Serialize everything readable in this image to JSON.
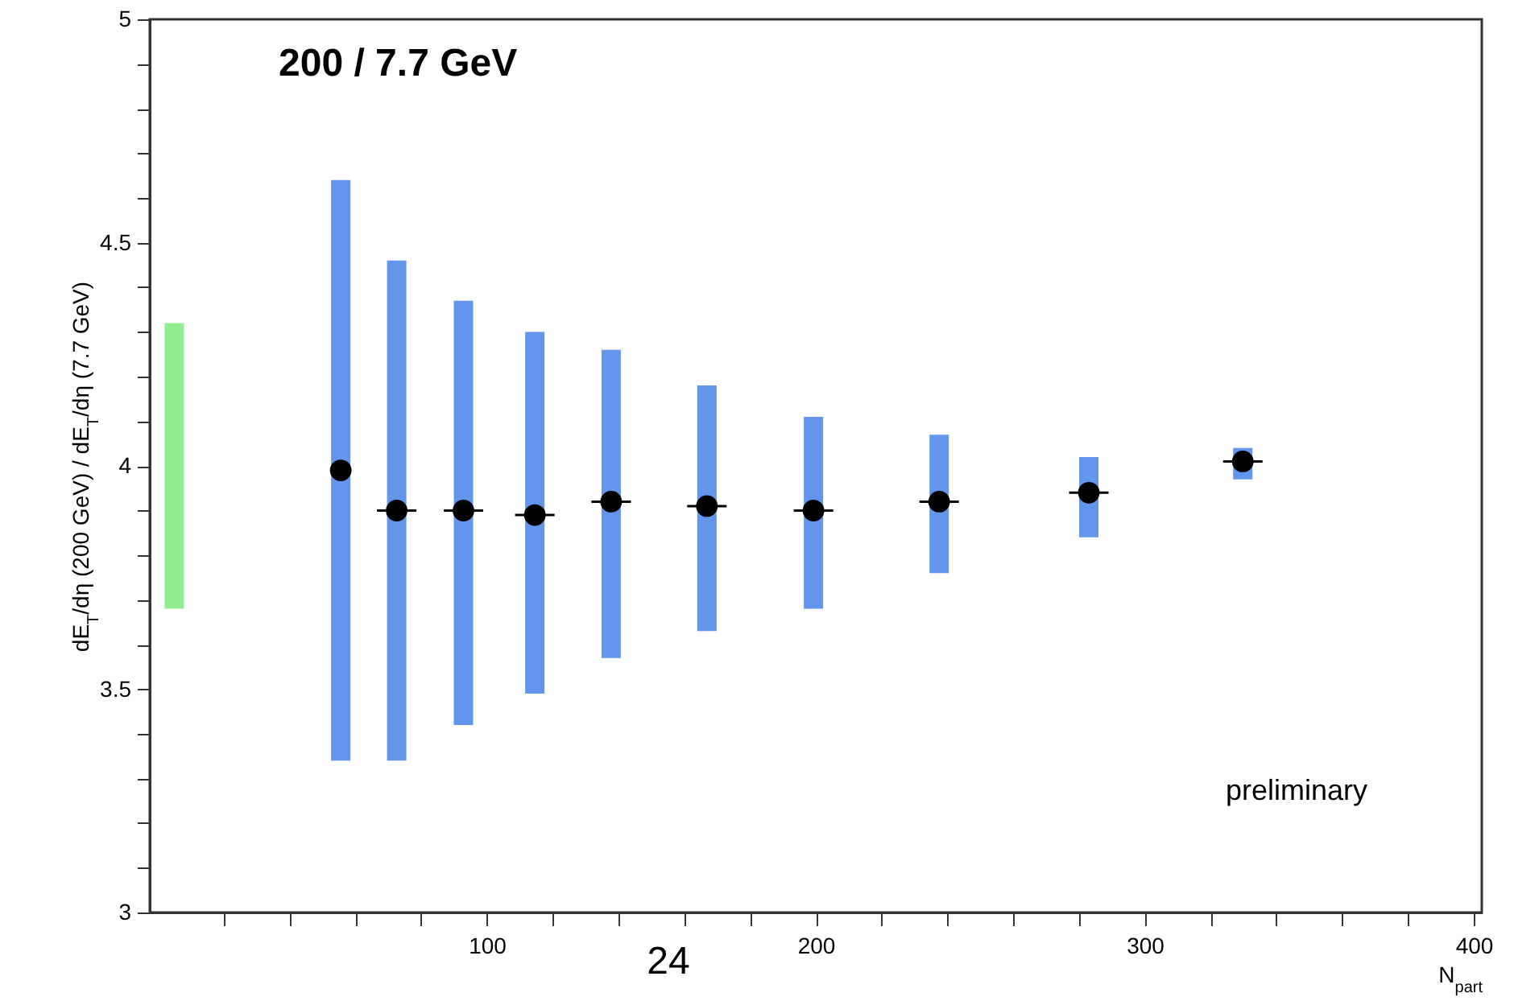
{
  "chart_data": {
    "type": "scatter",
    "title": "200 / 7.7 GeV",
    "xlabel": "N$_{part}$",
    "ylabel": "dE$_{T}$/dη (200 GeV) / dE$_{T}$/dη (7.7 GeV)",
    "annotations": [
      "preliminary",
      "24"
    ],
    "xlim": [
      0,
      400
    ],
    "ylim": [
      3,
      5
    ],
    "xticks": [
      {
        "value": 20,
        "label": null
      },
      {
        "value": 40,
        "label": null
      },
      {
        "value": 60,
        "label": null
      },
      {
        "value": 80,
        "label": null
      },
      100,
      {
        "value": 120,
        "label": null
      },
      {
        "value": 140,
        "label": null
      },
      {
        "value": 160,
        "label": null
      },
      {
        "value": 180,
        "label": null
      },
      200,
      {
        "value": 220,
        "label": null
      },
      {
        "value": 240,
        "label": null
      },
      {
        "value": 260,
        "label": null
      },
      {
        "value": 280,
        "label": null
      },
      300,
      {
        "value": 320,
        "label": null
      },
      {
        "value": 340,
        "label": null
      },
      {
        "value": 360,
        "label": null
      },
      {
        "value": 380,
        "label": null
      },
      400
    ],
    "yticks": [
      3,
      {
        "value": 3.1,
        "label": null
      },
      {
        "value": 3.2,
        "label": null
      },
      {
        "value": 3.3,
        "label": null
      },
      {
        "value": 3.4,
        "label": null
      },
      3.5,
      {
        "value": 3.6,
        "label": null
      },
      {
        "value": 3.7,
        "label": null
      },
      {
        "value": 3.8,
        "label": null
      },
      {
        "value": 3.9,
        "label": null
      },
      4,
      {
        "value": 4.1,
        "label": null
      },
      {
        "value": 4.2,
        "label": null
      },
      {
        "value": 4.3,
        "label": null
      },
      {
        "value": 4.4,
        "label": null
      },
      4.5,
      {
        "value": 4.6,
        "label": null
      },
      {
        "value": 4.7,
        "label": null
      },
      {
        "value": 4.8,
        "label": null
      },
      {
        "value": 4.9,
        "label": null
      },
      5
    ],
    "grid": false,
    "marker": "circle",
    "series": [
      {
        "type": "bar",
        "color": "#90ee90",
        "x": [
          5
        ],
        "base": [
          3.68
        ],
        "values": [
          0.64
        ]
      },
      {
        "type": "bar",
        "color": "#6495ed",
        "x": [
          55.6,
          72.6,
          92.9,
          114.6,
          137.8,
          166.9,
          199.3,
          237.5,
          283,
          329.8
        ],
        "base": [
          3.34,
          3.34,
          3.42,
          3.49,
          3.57,
          3.63,
          3.68,
          3.76,
          3.84,
          3.97
        ],
        "values": [
          1.3,
          1.12,
          0.95,
          0.81,
          0.69,
          0.55,
          0.43,
          0.31,
          0.18,
          0.07
        ]
      },
      {
        "color": "#000000",
        "x": [
          55.6,
          72.6,
          92.9,
          114.6,
          137.8,
          166.9,
          199.3,
          237.5,
          283,
          329.8
        ],
        "values": [
          3.99,
          3.9,
          3.9,
          3.89,
          3.92,
          3.91,
          3.9,
          3.92,
          3.94,
          4.01
        ],
        "xerrors": [
          null,
          6,
          6,
          6,
          6,
          6,
          6,
          6,
          6,
          6
        ]
      }
    ]
  }
}
